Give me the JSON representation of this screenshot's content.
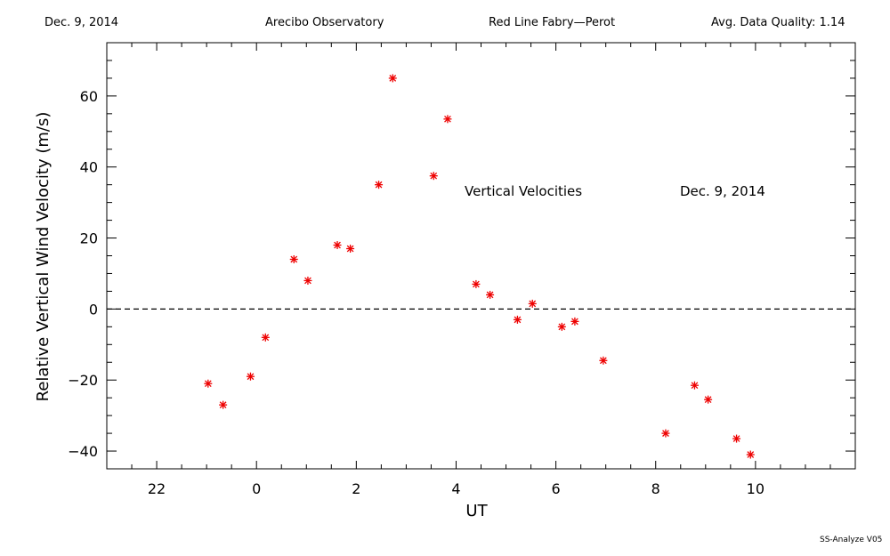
{
  "header": {
    "date": "Dec. 9, 2014",
    "observatory": "Arecibo Observatory",
    "instrument": "Red Line Fabry—Perot",
    "quality": "Avg. Data Quality: 1.14"
  },
  "footer": "SS-Analyze V05",
  "chart_data": {
    "type": "scatter",
    "xlabel": "UT",
    "ylabel": "Relative Vertical Wind Velocity (m/s)",
    "xlim": [
      21,
      36
    ],
    "ylim": [
      -45,
      75
    ],
    "x_ticks": [
      22,
      24,
      26,
      28,
      30,
      32,
      34
    ],
    "x_tick_labels": [
      "22",
      "0",
      "2",
      "4",
      "6",
      "8",
      "10"
    ],
    "y_ticks": [
      -40,
      -20,
      0,
      20,
      40,
      60
    ],
    "y_tick_labels": [
      "−40",
      "−20",
      "0",
      "20",
      "40",
      "60"
    ],
    "zero_line": true,
    "marker_color": "#ee0000",
    "annotations": [
      "Vertical Velocities",
      "Dec. 9, 2014"
    ],
    "series": [
      {
        "x": [
          23.03,
          23.33,
          23.88,
          24.18,
          24.75,
          25.03,
          25.62,
          25.88,
          26.45,
          26.73,
          27.55,
          27.83,
          28.4,
          28.68,
          29.23,
          29.53,
          30.12,
          30.38,
          30.95,
          32.2,
          32.78,
          33.05,
          33.62,
          33.9
        ],
        "y": [
          -21,
          -27,
          -19,
          -8,
          14,
          8,
          18,
          17,
          35,
          65,
          37.5,
          53.5,
          7,
          4,
          -3,
          1.5,
          -5,
          -3.5,
          -14.5,
          -35,
          -21.5,
          -25.5,
          -36.5,
          -41
        ]
      }
    ]
  }
}
